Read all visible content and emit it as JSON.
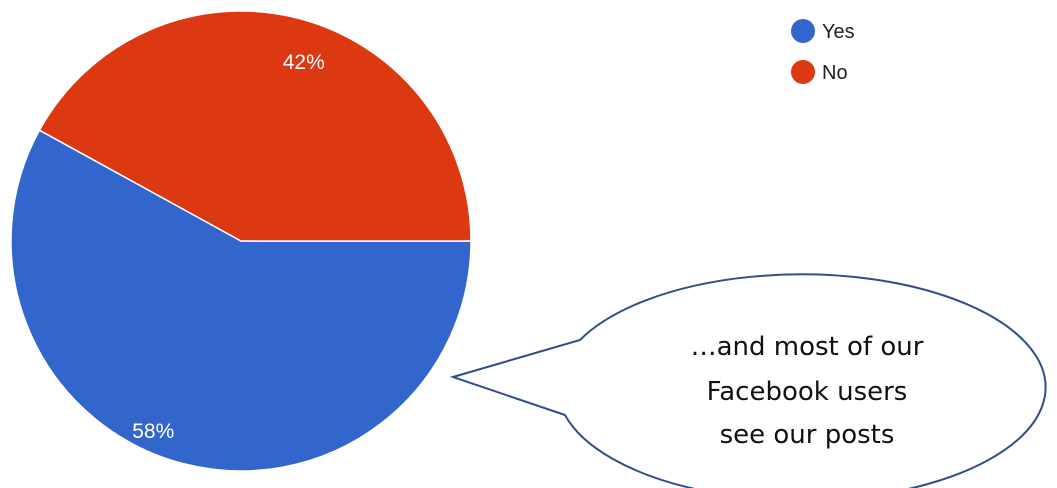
{
  "chart_data": {
    "type": "pie",
    "categories": [
      "Yes",
      "No"
    ],
    "values": [
      58,
      42
    ],
    "labels": [
      "58%",
      "42%"
    ],
    "colors": [
      "#3366cc",
      "#dc3912"
    ],
    "legend_position": "top-right"
  },
  "legend": {
    "items": [
      {
        "label": "Yes",
        "color": "#3366cc"
      },
      {
        "label": "No",
        "color": "#dc3912"
      }
    ]
  },
  "callout": {
    "lines": [
      "…and most of our",
      "Facebook  users",
      "see our posts"
    ]
  }
}
